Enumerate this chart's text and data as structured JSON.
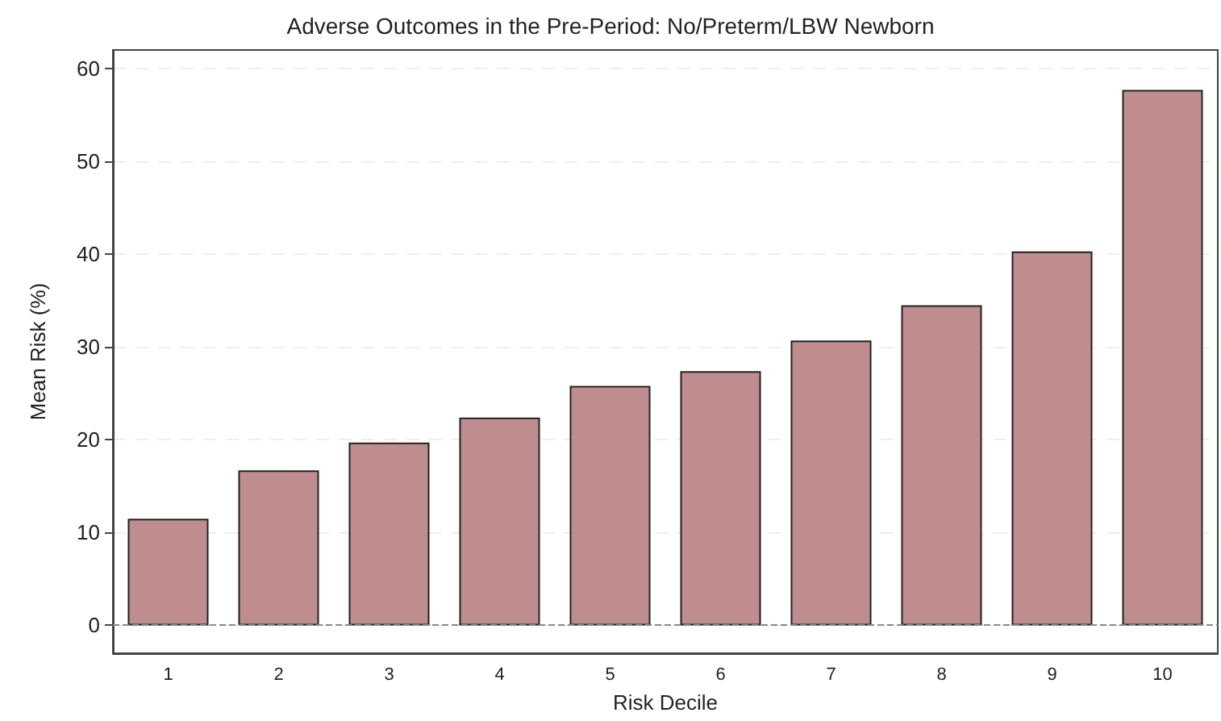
{
  "chart_data": {
    "type": "bar",
    "title": "Adverse Outcomes in the Pre-Period: No/Preterm/LBW Newborn",
    "xlabel": "Risk Decile",
    "ylabel": "Mean Risk (%)",
    "categories": [
      "1",
      "2",
      "3",
      "4",
      "5",
      "6",
      "7",
      "8",
      "9",
      "10"
    ],
    "values": [
      11.5,
      16.7,
      19.7,
      22.4,
      25.8,
      27.4,
      30.7,
      34.5,
      40.3,
      57.7
    ],
    "color": "#c08d8f",
    "ylim": [
      -3,
      62
    ],
    "yticks": [
      0,
      10,
      20,
      30,
      40,
      50,
      60
    ],
    "grid": "y",
    "ref_lines": [
      {
        "axis": "y",
        "value": 0,
        "color": "#888888",
        "line_style": "dashed"
      }
    ]
  }
}
